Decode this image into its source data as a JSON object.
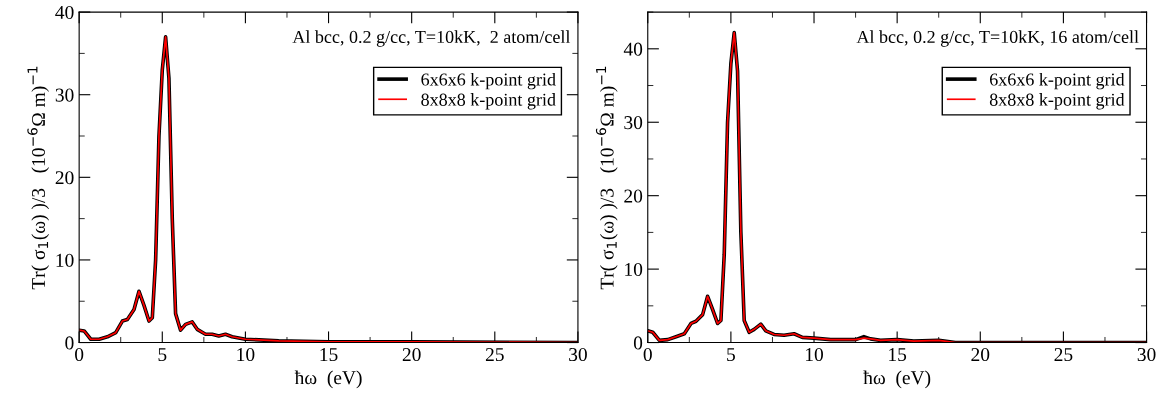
{
  "chart_data": [
    {
      "type": "line",
      "xlabel": "ħω  (eV)",
      "ylabel": "Tr( σ$_{1}$(ω) )/3   (10$^{−6}$Ω m)$^{−1}$",
      "annotations": [
        "Al bcc, 0.2 g/cc, T=10kK,  2 atom/cell"
      ],
      "xlim": [
        0,
        30
      ],
      "ylim": [
        0,
        40
      ],
      "xticks": [
        0,
        5,
        10,
        15,
        20,
        25,
        30
      ],
      "yticks": [
        0,
        10,
        20,
        30,
        40
      ],
      "legend": "top right",
      "grid": false,
      "series": [
        {
          "name": "6x6x6 k-point grid",
          "color": "#000000",
          "x": [
            0,
            0.3,
            0.7,
            1.2,
            1.7,
            2.2,
            2.6,
            2.9,
            3.3,
            3.6,
            3.9,
            4.2,
            4.4,
            4.6,
            4.8,
            5.0,
            5.2,
            5.4,
            5.6,
            5.8,
            6.1,
            6.4,
            6.8,
            7.1,
            7.6,
            8.0,
            8.4,
            8.8,
            9.2,
            10,
            12,
            15,
            20,
            30
          ],
          "values": [
            1.5,
            1.4,
            0.4,
            0.4,
            0.7,
            1.2,
            2.6,
            2.8,
            4.0,
            6.2,
            4.5,
            2.6,
            3.0,
            10,
            25,
            33,
            37,
            32,
            15,
            3.5,
            1.5,
            2.2,
            2.5,
            1.6,
            1.0,
            1.0,
            0.8,
            1.0,
            0.7,
            0.4,
            0.2,
            0.1,
            0.1,
            0
          ]
        },
        {
          "name": "8x8x8 k-point grid",
          "color": "#ff0000",
          "x": [
            0,
            0.3,
            0.7,
            1.2,
            1.7,
            2.2,
            2.6,
            2.9,
            3.3,
            3.6,
            3.9,
            4.2,
            4.4,
            4.6,
            4.8,
            5.0,
            5.2,
            5.4,
            5.6,
            5.8,
            6.1,
            6.4,
            6.8,
            7.1,
            7.6,
            8.0,
            8.4,
            8.8,
            9.2,
            10,
            12,
            15,
            20,
            30
          ],
          "values": [
            1.5,
            1.4,
            0.4,
            0.4,
            0.7,
            1.2,
            2.6,
            2.8,
            4.0,
            6.2,
            4.5,
            2.6,
            3.0,
            10,
            25,
            33,
            37,
            32,
            15,
            3.5,
            1.5,
            2.2,
            2.5,
            1.6,
            1.0,
            1.0,
            0.8,
            1.0,
            0.7,
            0.4,
            0.2,
            0.1,
            0.1,
            0
          ]
        }
      ]
    },
    {
      "type": "line",
      "xlabel": "ħω  (eV)",
      "ylabel": "Tr( σ$_{1}$(ω) )/3   (10$^{−6}$Ω m)$^{−1}$",
      "annotations": [
        "Al bcc, 0.2 g/cc, T=10kK, 16 atom/cell"
      ],
      "xlim": [
        0,
        30
      ],
      "ylim": [
        0,
        45
      ],
      "xticks": [
        0,
        5,
        10,
        15,
        20,
        25,
        30
      ],
      "yticks": [
        0,
        10,
        20,
        30,
        40
      ],
      "legend": "top right",
      "grid": false,
      "series": [
        {
          "name": "6x6x6 k-point grid",
          "color": "#000000",
          "x": [
            0,
            0.3,
            0.7,
            1.2,
            1.7,
            2.2,
            2.6,
            2.9,
            3.3,
            3.6,
            3.9,
            4.2,
            4.4,
            4.6,
            4.8,
            5.0,
            5.2,
            5.4,
            5.6,
            5.8,
            6.1,
            6.4,
            6.8,
            7.1,
            7.6,
            8.2,
            8.8,
            9.3,
            10,
            11,
            12.5,
            13,
            13.4,
            14,
            15,
            16,
            17.5,
            18.5,
            30
          ],
          "values": [
            1.6,
            1.4,
            0.3,
            0.4,
            0.8,
            1.2,
            2.6,
            2.9,
            3.8,
            6.3,
            4.5,
            2.6,
            3.0,
            12,
            30,
            38,
            42.2,
            37,
            15,
            3.0,
            1.4,
            1.8,
            2.5,
            1.6,
            1.1,
            1.0,
            1.2,
            0.7,
            0.6,
            0.4,
            0.4,
            0.8,
            0.5,
            0.3,
            0.4,
            0.2,
            0.3,
            0.0,
            0
          ]
        },
        {
          "name": "8x8x8 k-point grid",
          "color": "#ff0000",
          "x": [
            0,
            0.3,
            0.7,
            1.2,
            1.7,
            2.2,
            2.6,
            2.9,
            3.3,
            3.6,
            3.9,
            4.2,
            4.4,
            4.6,
            4.8,
            5.0,
            5.2,
            5.4,
            5.6,
            5.8,
            6.1,
            6.4,
            6.8,
            7.1,
            7.6,
            8.2,
            8.8,
            9.3,
            10,
            11,
            12.5,
            13,
            13.4,
            14,
            15,
            16,
            17.5,
            18.5,
            30
          ],
          "values": [
            1.6,
            1.4,
            0.3,
            0.4,
            0.8,
            1.2,
            2.6,
            2.9,
            3.8,
            6.3,
            4.5,
            2.6,
            3.0,
            12,
            30,
            38,
            42.2,
            37,
            15,
            3.0,
            1.4,
            1.8,
            2.5,
            1.6,
            1.1,
            1.0,
            1.2,
            0.7,
            0.6,
            0.4,
            0.4,
            0.6,
            0.5,
            0.3,
            0.4,
            0.2,
            0.3,
            0.0,
            0
          ]
        }
      ]
    }
  ]
}
